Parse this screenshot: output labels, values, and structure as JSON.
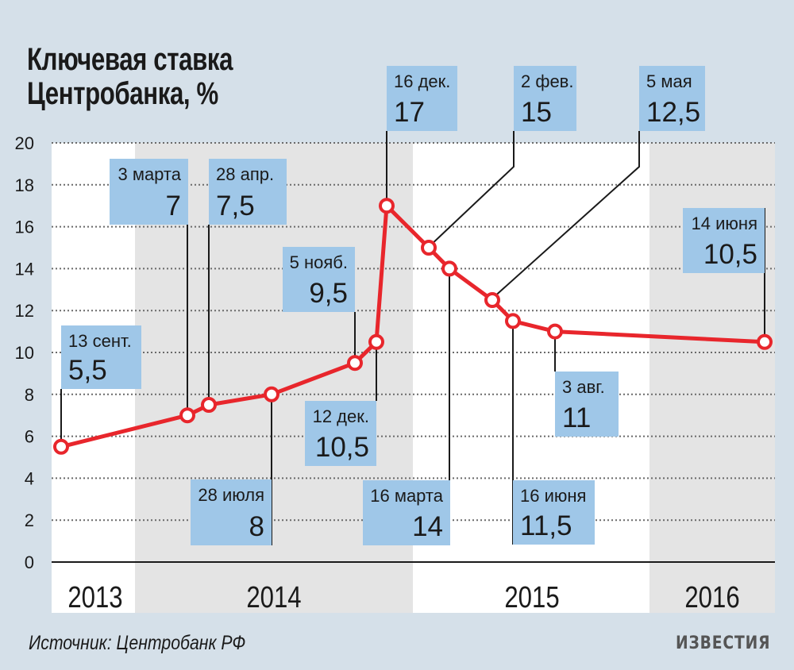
{
  "title_line1": "Ключевая ставка",
  "title_line2": "Центробанка, %",
  "source": "Источник: Центробанк РФ",
  "logo": "ИЗВЕСТИЯ",
  "colors": {
    "background": "#d5e0e9",
    "plot_white": "#ffffff",
    "plot_band": "#e4e4e4",
    "line": "#e8262c",
    "callout": "#9fc7e8"
  },
  "chart_data": {
    "type": "line",
    "title": "Ключевая ставка Центробанка, %",
    "ylim": [
      0,
      20
    ],
    "yticks": [
      "0",
      "2",
      "4",
      "6",
      "8",
      "10",
      "12",
      "14",
      "16",
      "18",
      "20"
    ],
    "grid": "horizontal dotted",
    "years": [
      "2013",
      "2014",
      "2015",
      "2016"
    ],
    "points": [
      {
        "date": "13 сент.",
        "value": 5.5,
        "value_label": "5,5"
      },
      {
        "date": "3 марта",
        "value": 7,
        "value_label": "7"
      },
      {
        "date": "28 апр.",
        "value": 7.5,
        "value_label": "7,5"
      },
      {
        "date": "28 июля",
        "value": 8,
        "value_label": "8"
      },
      {
        "date": "5 нояб.",
        "value": 9.5,
        "value_label": "9,5"
      },
      {
        "date": "12 дек.",
        "value": 10.5,
        "value_label": "10,5"
      },
      {
        "date": "16 дек.",
        "value": 17,
        "value_label": "17"
      },
      {
        "date": "2 фев.",
        "value": 15,
        "value_label": "15"
      },
      {
        "date": "16 марта",
        "value": 14,
        "value_label": "14"
      },
      {
        "date": "5 мая",
        "value": 12.5,
        "value_label": "12,5"
      },
      {
        "date": "16 июня",
        "value": 11.5,
        "value_label": "11,5"
      },
      {
        "date": "3 авг.",
        "value": 11,
        "value_label": "11"
      },
      {
        "date": "14 июня",
        "value": 10.5,
        "value_label": "10,5"
      }
    ]
  }
}
